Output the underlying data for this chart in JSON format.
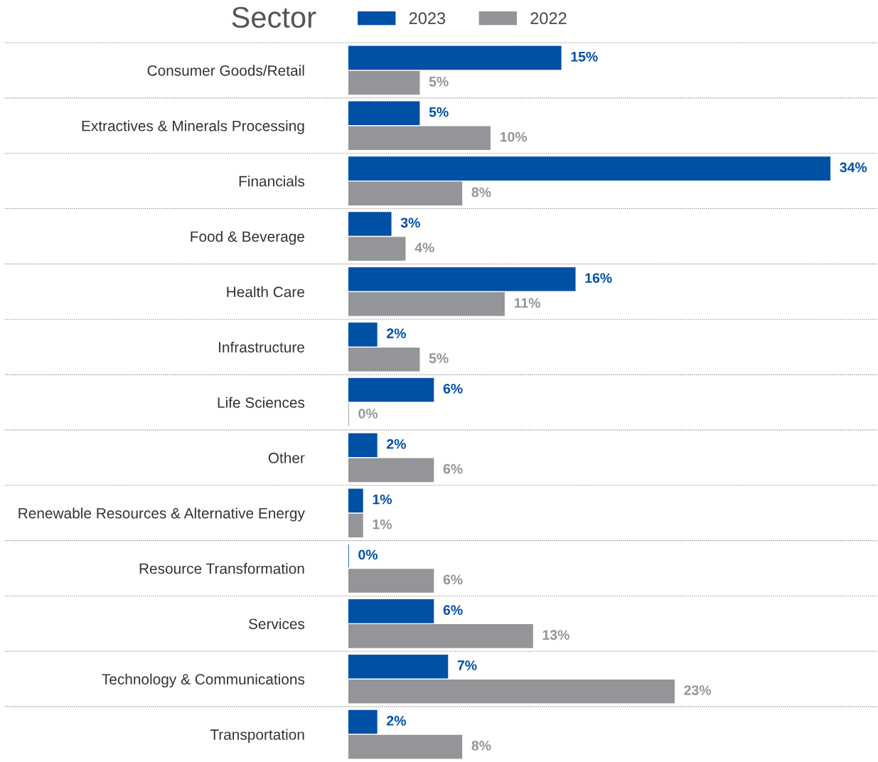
{
  "chart_data": {
    "type": "bar",
    "orientation": "horizontal",
    "ylabel": "Sector",
    "categories": [
      "Consumer Goods/Retail",
      "Extractives & Minerals Processing",
      "Financials",
      "Food & Beverage",
      "Health Care",
      "Infrastructure",
      "Life Sciences",
      "Other",
      "Renewable Resources & Alternative Energy",
      "Resource Transformation",
      "Services",
      "Technology & Communications",
      "Transportation"
    ],
    "series": [
      {
        "name": "2023",
        "color": "#0050a5",
        "values": [
          15,
          5,
          34,
          3,
          16,
          2,
          6,
          2,
          1,
          0,
          6,
          7,
          2
        ],
        "value_labels": [
          "15%",
          "5%",
          "34%",
          "3%",
          "16%",
          "2%",
          "6%",
          "2%",
          "1%",
          "0%",
          "6%",
          "7%",
          "2%"
        ]
      },
      {
        "name": "2022",
        "color": "#939598",
        "values": [
          5,
          10,
          8,
          4,
          11,
          5,
          0,
          6,
          1,
          6,
          13,
          23,
          8
        ],
        "value_labels": [
          "5%",
          "10%",
          "8%",
          "4%",
          "11%",
          "5%",
          "0%",
          "6%",
          "1%",
          "6%",
          "13%",
          "23%",
          "8%"
        ]
      }
    ],
    "grid": "y",
    "legend": "top"
  }
}
